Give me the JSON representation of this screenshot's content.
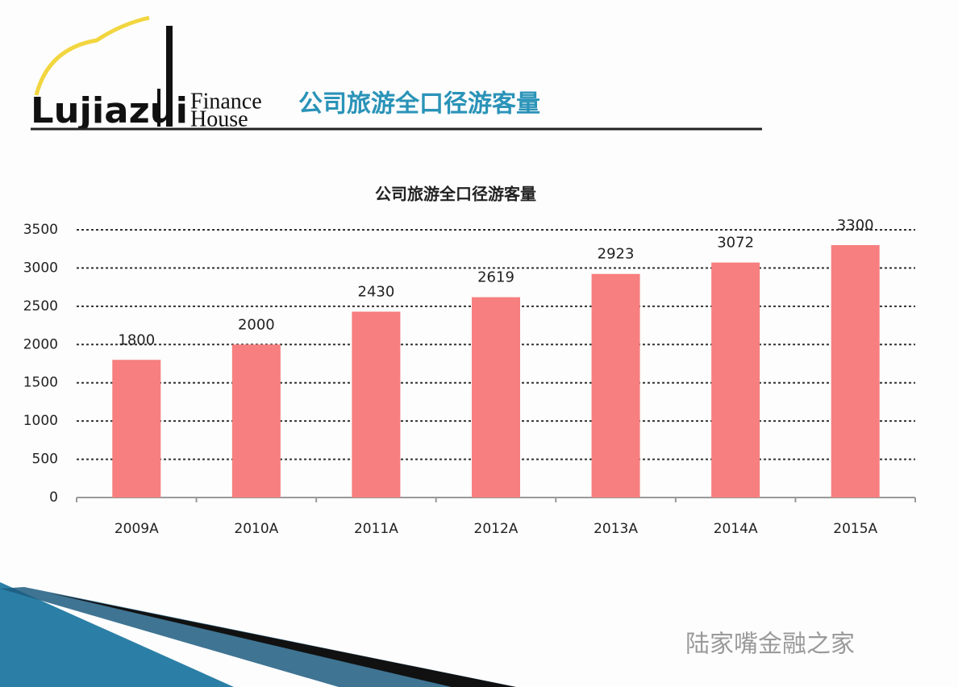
{
  "header": {
    "logo": "Lujiazui",
    "logo_line1": "Finance",
    "logo_line2": "House",
    "title": "公司旅游全口径游客量"
  },
  "watermark": "陆家嘴金融之家",
  "chart_data": {
    "type": "bar",
    "title": "公司旅游全口径游客量",
    "categories": [
      "2009A",
      "2010A",
      "2011A",
      "2012A",
      "2013A",
      "2014A",
      "2015A"
    ],
    "values": [
      1800,
      2000,
      2430,
      2619,
      2923,
      3072,
      3300
    ],
    "color": "#f77f7f",
    "ylim": [
      0,
      3500
    ],
    "yticks": [
      0,
      500,
      1000,
      1500,
      2000,
      2500,
      3000,
      3500
    ],
    "grid": true
  }
}
